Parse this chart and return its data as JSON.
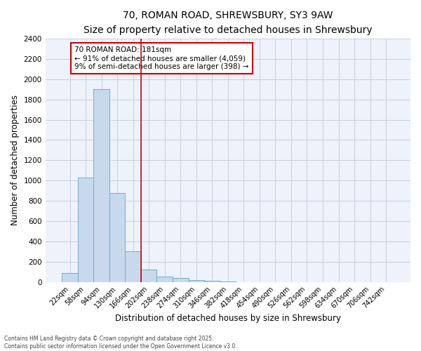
{
  "title_line1": "70, ROMAN ROAD, SHREWSBURY, SY3 9AW",
  "title_line2": "Size of property relative to detached houses in Shrewsbury",
  "xlabel": "Distribution of detached houses by size in Shrewsbury",
  "ylabel": "Number of detached properties",
  "categories": [
    "22sqm",
    "58sqm",
    "94sqm",
    "130sqm",
    "166sqm",
    "202sqm",
    "238sqm",
    "274sqm",
    "310sqm",
    "346sqm",
    "382sqm",
    "418sqm",
    "454sqm",
    "490sqm",
    "526sqm",
    "562sqm",
    "598sqm",
    "634sqm",
    "670sqm",
    "706sqm",
    "742sqm"
  ],
  "values": [
    90,
    1030,
    1900,
    880,
    305,
    125,
    55,
    42,
    20,
    10,
    8,
    0,
    0,
    0,
    0,
    0,
    0,
    0,
    0,
    0,
    0
  ],
  "bar_color": "#c8d9ee",
  "bar_edge_color": "#6aaed6",
  "red_line_index": 4.5,
  "annotation_text": "70 ROMAN ROAD: 181sqm\n← 91% of detached houses are smaller (4,059)\n9% of semi-detached houses are larger (398) →",
  "ylim": [
    0,
    2400
  ],
  "yticks": [
    0,
    200,
    400,
    600,
    800,
    1000,
    1200,
    1400,
    1600,
    1800,
    2000,
    2200,
    2400
  ],
  "grid_color": "#c8d0e0",
  "bg_color": "#edf2fb",
  "footer_line1": "Contains HM Land Registry data © Crown copyright and database right 2025.",
  "footer_line2": "Contains public sector information licensed under the Open Government Licence v3.0.",
  "title1_fontsize": 10,
  "title2_fontsize": 9,
  "xlabel_fontsize": 8.5,
  "ylabel_fontsize": 8.5,
  "tick_fontsize": 7,
  "ytick_fontsize": 7.5,
  "ann_fontsize": 7.5,
  "footer_fontsize": 5.5
}
